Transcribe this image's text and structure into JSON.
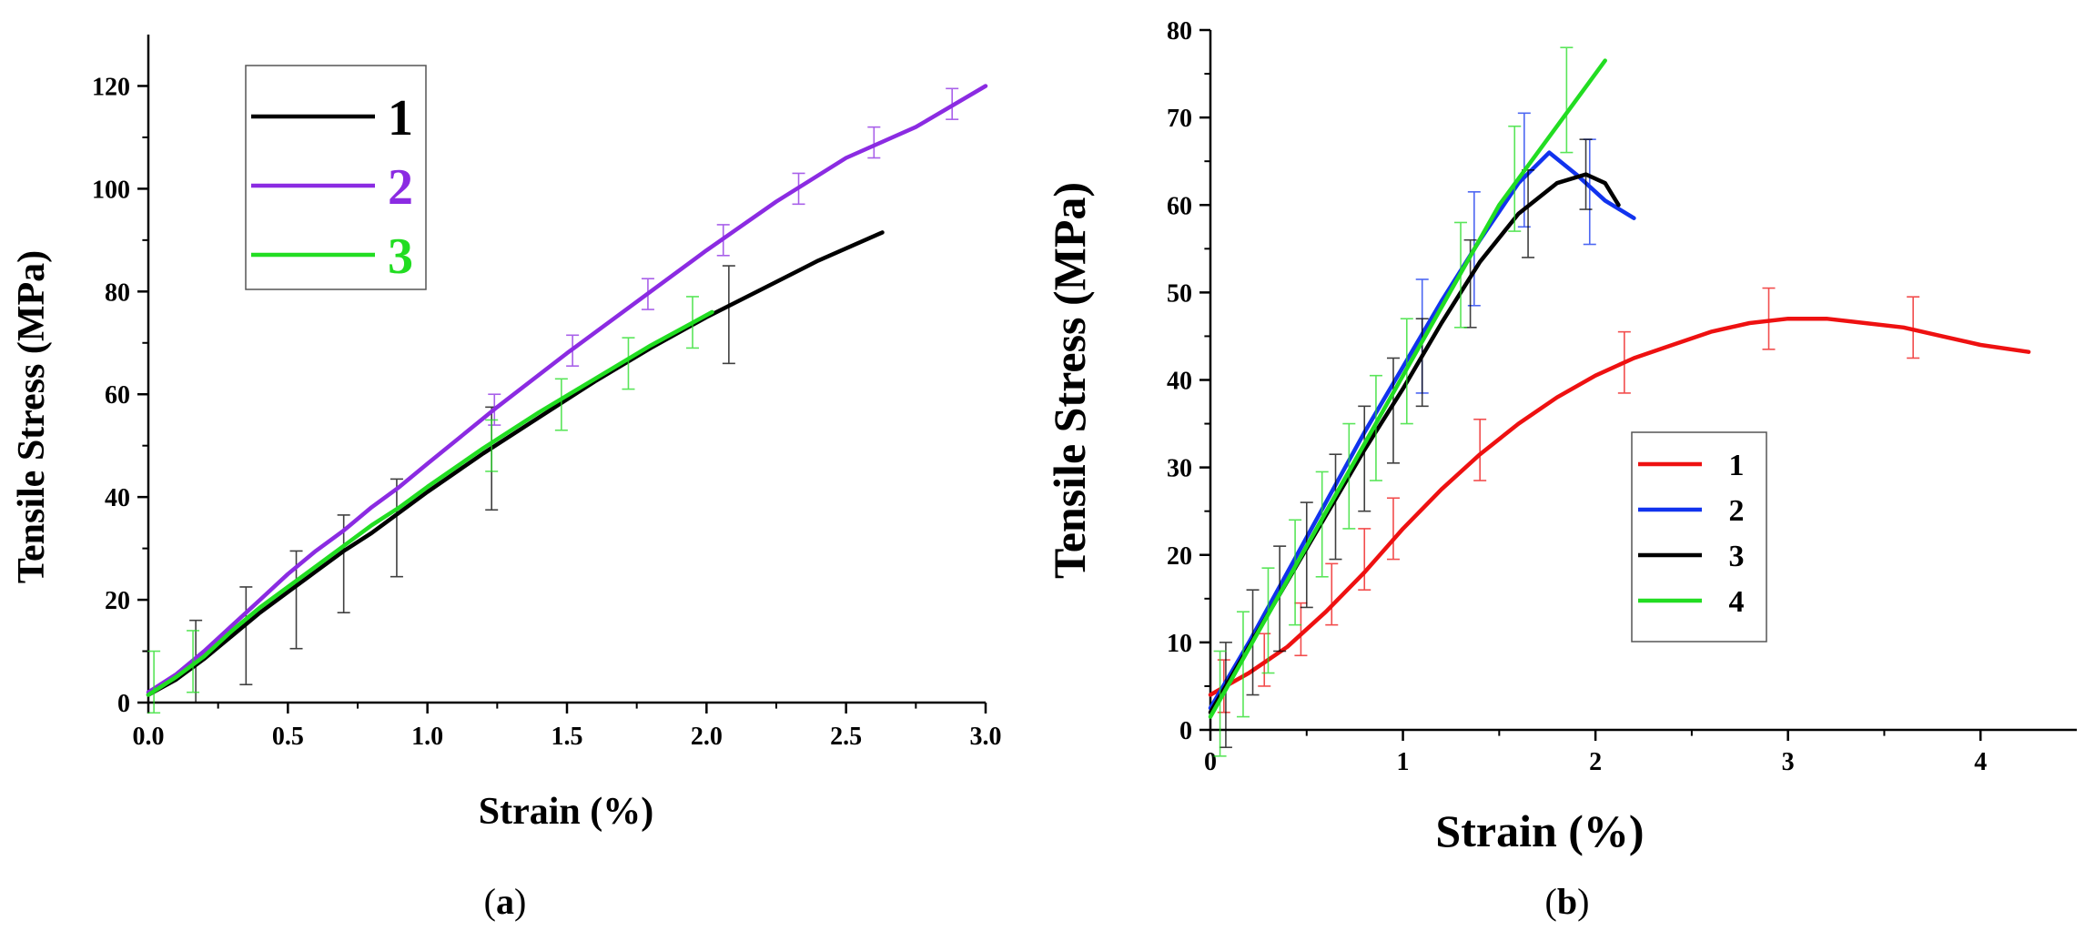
{
  "chart_data": [
    {
      "id": "a",
      "type": "line",
      "caption_open": "(",
      "caption_letter": "a",
      "caption_close": ")",
      "title": "",
      "xlabel": "Strain (%)",
      "ylabel": "Tensile Stress (MPa)",
      "xlim": [
        0,
        3.0
      ],
      "ylim": [
        0,
        130
      ],
      "xticks": [
        0.0,
        0.5,
        1.0,
        1.5,
        2.0,
        2.5,
        3.0
      ],
      "xtick_labels": [
        "0.0",
        "0.5",
        "1.0",
        "1.5",
        "2.0",
        "2.5",
        "3.0"
      ],
      "yticks": [
        0,
        20,
        40,
        60,
        80,
        100,
        120
      ],
      "ytick_labels": [
        "0",
        "20",
        "40",
        "60",
        "80",
        "100",
        "120"
      ],
      "legend_position": "top-left",
      "series": [
        {
          "name": "1",
          "color": "#000000",
          "x": [
            0,
            0.1,
            0.2,
            0.3,
            0.4,
            0.5,
            0.6,
            0.7,
            0.8,
            0.9,
            1.0,
            1.2,
            1.4,
            1.6,
            1.8,
            2.0,
            2.2,
            2.4,
            2.63
          ],
          "y": [
            1.5,
            4.5,
            8.5,
            13,
            17.5,
            21.5,
            25.5,
            29.5,
            33,
            37,
            41,
            48.5,
            55.5,
            62.5,
            69,
            75,
            80.5,
            86,
            91.5
          ],
          "error_bars": [
            {
              "x": 0.17,
              "y": 8,
              "err": 8
            },
            {
              "x": 0.35,
              "y": 13,
              "err": 9.5
            },
            {
              "x": 0.53,
              "y": 20,
              "err": 9.5
            },
            {
              "x": 0.7,
              "y": 27,
              "err": 9.5
            },
            {
              "x": 0.89,
              "y": 34,
              "err": 9.5
            },
            {
              "x": 1.23,
              "y": 47.5,
              "err": 10
            },
            {
              "x": 2.08,
              "y": 75.5,
              "err": 9.5
            }
          ]
        },
        {
          "name": "2",
          "color": "#8B2BE2",
          "x": [
            0,
            0.1,
            0.2,
            0.3,
            0.4,
            0.5,
            0.6,
            0.7,
            0.8,
            0.9,
            1.0,
            1.25,
            1.5,
            1.75,
            2.0,
            2.25,
            2.5,
            2.75,
            3.0
          ],
          "y": [
            2,
            5.5,
            10,
            15,
            20,
            25,
            29.5,
            33.5,
            38,
            42,
            46.5,
            57.5,
            68,
            78,
            88,
            97.5,
            106,
            112,
            120
          ],
          "error_bars": [
            {
              "x": 1.24,
              "y": 57,
              "err": 3
            },
            {
              "x": 1.52,
              "y": 68.5,
              "err": 3
            },
            {
              "x": 1.79,
              "y": 79.5,
              "err": 3
            },
            {
              "x": 2.06,
              "y": 90,
              "err": 3
            },
            {
              "x": 2.33,
              "y": 100,
              "err": 3
            },
            {
              "x": 2.6,
              "y": 109,
              "err": 3
            },
            {
              "x": 2.88,
              "y": 116.5,
              "err": 3
            }
          ]
        },
        {
          "name": "3",
          "color": "#22DD22",
          "x": [
            0,
            0.1,
            0.2,
            0.3,
            0.4,
            0.5,
            0.6,
            0.7,
            0.8,
            0.9,
            1.0,
            1.2,
            1.4,
            1.6,
            1.8,
            2.02
          ],
          "y": [
            1.5,
            5,
            9,
            14,
            18.5,
            22.5,
            26.5,
            30.5,
            34.5,
            38,
            42,
            49.5,
            56.5,
            63,
            69.5,
            76
          ],
          "error_bars": [
            {
              "x": 0.02,
              "y": 4,
              "err": 6
            },
            {
              "x": 0.16,
              "y": 8,
              "err": 6
            },
            {
              "x": 1.23,
              "y": 50,
              "err": 5
            },
            {
              "x": 1.48,
              "y": 58,
              "err": 5
            },
            {
              "x": 1.72,
              "y": 66,
              "err": 5
            },
            {
              "x": 1.95,
              "y": 74,
              "err": 5
            }
          ]
        }
      ]
    },
    {
      "id": "b",
      "type": "line",
      "caption_open": "(",
      "caption_letter": "b",
      "caption_close": ")",
      "title": "",
      "xlabel": "Strain (%)",
      "ylabel": "Tensile Stress (MPa)",
      "xlim": [
        0,
        4.5
      ],
      "ylim": [
        0,
        80
      ],
      "xticks": [
        0,
        1,
        2,
        3,
        4
      ],
      "xtick_labels": [
        "0",
        "1",
        "2",
        "3",
        "4"
      ],
      "yticks": [
        0,
        10,
        20,
        30,
        40,
        50,
        60,
        70,
        80
      ],
      "ytick_labels": [
        "0",
        "10",
        "20",
        "30",
        "40",
        "50",
        "60",
        "70",
        "80"
      ],
      "legend_position": "center-right",
      "series": [
        {
          "name": "1",
          "color": "#EE1111",
          "x": [
            0,
            0.2,
            0.4,
            0.6,
            0.8,
            1.0,
            1.2,
            1.4,
            1.6,
            1.8,
            2.0,
            2.2,
            2.4,
            2.6,
            2.8,
            3.0,
            3.2,
            3.4,
            3.6,
            3.8,
            4.0,
            4.25
          ],
          "y": [
            4,
            6.5,
            9.5,
            13.5,
            18,
            23,
            27.5,
            31.5,
            35,
            38,
            40.5,
            42.5,
            44,
            45.5,
            46.5,
            47,
            47,
            46.5,
            46,
            45,
            44,
            43.2
          ],
          "error_bars": [
            {
              "x": 0.07,
              "y": 5,
              "err": 3
            },
            {
              "x": 0.28,
              "y": 8,
              "err": 3
            },
            {
              "x": 0.47,
              "y": 11.5,
              "err": 3
            },
            {
              "x": 0.63,
              "y": 15.5,
              "err": 3.5
            },
            {
              "x": 0.8,
              "y": 19.5,
              "err": 3.5
            },
            {
              "x": 0.95,
              "y": 23,
              "err": 3.5
            },
            {
              "x": 1.4,
              "y": 32,
              "err": 3.5
            },
            {
              "x": 2.15,
              "y": 42,
              "err": 3.5
            },
            {
              "x": 2.9,
              "y": 47,
              "err": 3.5
            },
            {
              "x": 3.65,
              "y": 46,
              "err": 3.5
            }
          ]
        },
        {
          "name": "2",
          "color": "#1133EE",
          "x": [
            0,
            0.2,
            0.4,
            0.6,
            0.8,
            1.0,
            1.2,
            1.4,
            1.6,
            1.76,
            1.9,
            2.05,
            2.2
          ],
          "y": [
            2.5,
            10,
            18,
            26,
            34,
            41.5,
            49,
            56,
            62.5,
            66,
            63.5,
            60.5,
            58.5
          ],
          "error_bars": [
            {
              "x": 1.1,
              "y": 45,
              "err": 6.5
            },
            {
              "x": 1.37,
              "y": 55,
              "err": 6.5
            },
            {
              "x": 1.63,
              "y": 64,
              "err": 6.5
            },
            {
              "x": 1.97,
              "y": 61.5,
              "err": 6
            }
          ]
        },
        {
          "name": "3",
          "color": "#000000",
          "x": [
            0,
            0.2,
            0.4,
            0.6,
            0.8,
            1.0,
            1.2,
            1.4,
            1.6,
            1.8,
            1.95,
            2.05,
            2.12
          ],
          "y": [
            2,
            9.5,
            17,
            24.5,
            32,
            39,
            46.5,
            53.5,
            59,
            62.5,
            63.5,
            62.5,
            60
          ],
          "error_bars": [
            {
              "x": 0.08,
              "y": 4,
              "err": 6
            },
            {
              "x": 0.22,
              "y": 10,
              "err": 6
            },
            {
              "x": 0.36,
              "y": 15,
              "err": 6
            },
            {
              "x": 0.5,
              "y": 20,
              "err": 6
            },
            {
              "x": 0.65,
              "y": 25.5,
              "err": 6
            },
            {
              "x": 0.8,
              "y": 31,
              "err": 6
            },
            {
              "x": 0.95,
              "y": 36.5,
              "err": 6
            },
            {
              "x": 1.1,
              "y": 42,
              "err": 5
            },
            {
              "x": 1.35,
              "y": 51,
              "err": 5
            },
            {
              "x": 1.65,
              "y": 59,
              "err": 5
            },
            {
              "x": 1.95,
              "y": 63.5,
              "err": 4
            }
          ]
        },
        {
          "name": "4",
          "color": "#22DD22",
          "x": [
            0,
            0.5,
            1.0,
            1.5,
            2.05
          ],
          "y": [
            1.5,
            21,
            40.5,
            60,
            76.5
          ],
          "error_bars": [
            {
              "x": 0.05,
              "y": 3,
              "err": 6
            },
            {
              "x": 0.17,
              "y": 7.5,
              "err": 6
            },
            {
              "x": 0.3,
              "y": 12.5,
              "err": 6
            },
            {
              "x": 0.44,
              "y": 18,
              "err": 6
            },
            {
              "x": 0.58,
              "y": 23.5,
              "err": 6
            },
            {
              "x": 0.72,
              "y": 29,
              "err": 6
            },
            {
              "x": 0.86,
              "y": 34.5,
              "err": 6
            },
            {
              "x": 1.02,
              "y": 41,
              "err": 6
            },
            {
              "x": 1.3,
              "y": 52,
              "err": 6
            },
            {
              "x": 1.58,
              "y": 63,
              "err": 6
            },
            {
              "x": 1.85,
              "y": 72,
              "err": 6
            }
          ]
        }
      ]
    }
  ]
}
